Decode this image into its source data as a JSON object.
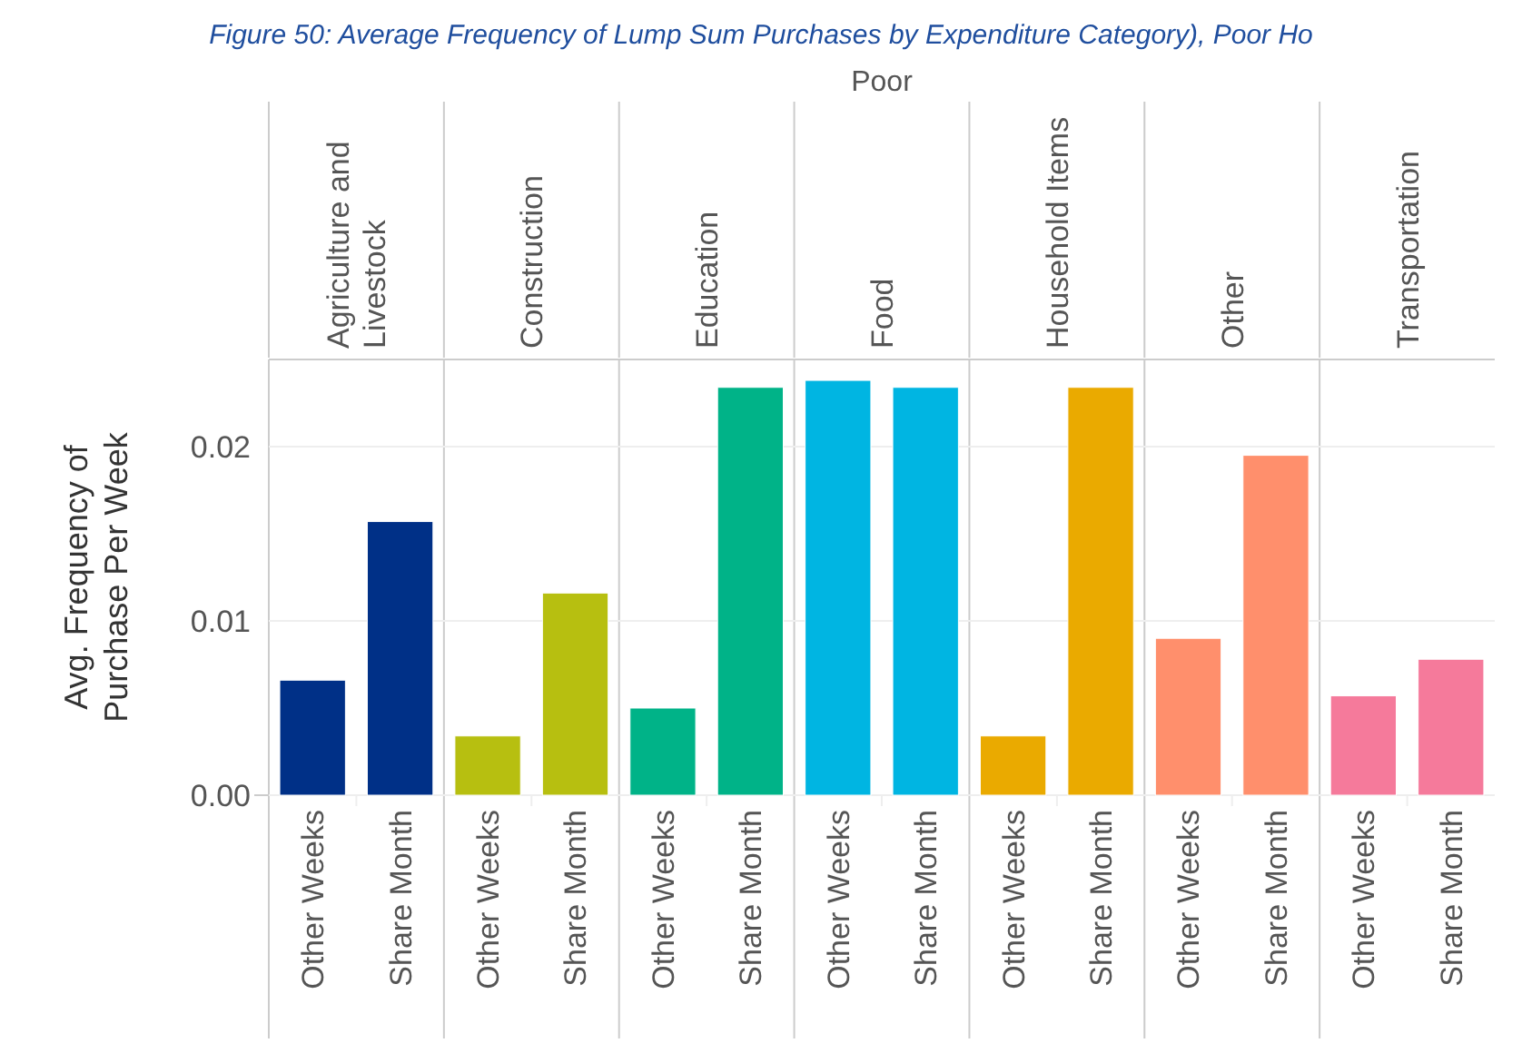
{
  "chart_data": {
    "type": "bar",
    "title": "Figure 50: Average Frequency of Lump Sum Purchases by Expenditure Category), Poor Ho",
    "ylabel": "Avg. Frequency of Purchase Per Week",
    "categories": [
      "Other Weeks",
      "Share Month",
      "Other Weeks",
      "Share Month",
      "Other Weeks",
      "Share Month",
      "Other Weeks",
      "Share Month",
      "Other Weeks",
      "Share Month",
      "Other Weeks",
      "Share Month",
      "Other Weeks",
      "Share Month"
    ],
    "values": [
      0.0066,
      0.0157,
      0.0034,
      0.0116,
      0.005,
      0.0234,
      0.0238,
      0.0234,
      0.0034,
      0.0234,
      0.009,
      0.0195,
      0.0057,
      0.0078
    ],
    "colors": [
      "#003087",
      "#003087",
      "#b7bf10",
      "#b7bf10",
      "#00b388",
      "#00b388",
      "#00b5e2",
      "#00b5e2",
      "#eaaa00",
      "#eaaa00",
      "#ff8f6c",
      "#ff8f6c",
      "#f57a9b",
      "#f57a9b"
    ],
    "annotations": [
      "Poor",
      "Agriculture and Livestock",
      "Construction",
      "Education",
      "Food",
      "Household Items",
      "Other",
      "Transportation"
    ],
    "ylim": [
      0,
      0.025
    ],
    "yticks": [
      {
        "value": 0,
        "label": "0.00"
      },
      {
        "value": 0.01,
        "label": "0.01"
      },
      {
        "value": 0.02,
        "label": "0.02"
      }
    ],
    "grid": "y"
  }
}
